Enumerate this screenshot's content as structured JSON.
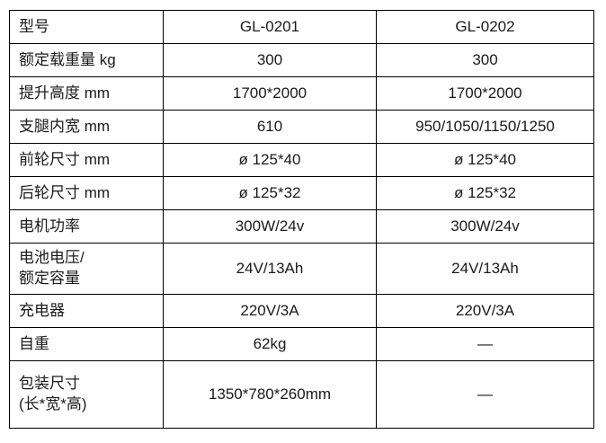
{
  "table": {
    "header": {
      "model_label": "型号",
      "models": [
        "GL-0201",
        "GL-0202"
      ]
    },
    "rows": [
      {
        "label": "额定载重量 kg",
        "values": [
          "300",
          "300"
        ]
      },
      {
        "label": "提升高度 mm",
        "values": [
          "1700*2000",
          "1700*2000"
        ]
      },
      {
        "label": "支腿内宽 mm",
        "values": [
          "610",
          "950/1050/1150/1250"
        ]
      },
      {
        "label": "前轮尺寸 mm",
        "values": [
          "ø 125*40",
          "ø 125*40"
        ]
      },
      {
        "label": "后轮尺寸 mm",
        "values": [
          "ø 125*32",
          "ø 125*32"
        ]
      },
      {
        "label": "电机功率",
        "values": [
          "300W/24v",
          "300W/24v"
        ]
      },
      {
        "label": "电池电压/\n额定容量",
        "values": [
          "24V/13Ah",
          "24V/13Ah"
        ]
      },
      {
        "label": "充电器",
        "values": [
          "220V/3A",
          "220V/3A"
        ]
      },
      {
        "label": "自重",
        "values": [
          "62kg",
          "—"
        ]
      },
      {
        "label": "包装尺寸\n(长*宽*高)",
        "values": [
          "1350*780*260mm",
          "—"
        ]
      }
    ],
    "colors": {
      "border": "#000000",
      "text": "#1a1a1a",
      "background": "#ffffff"
    }
  }
}
